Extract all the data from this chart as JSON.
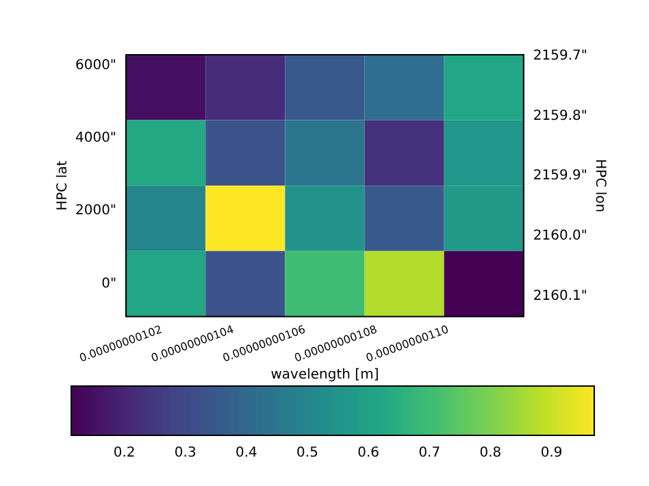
{
  "chart_data": {
    "type": "heatmap",
    "xlabel": "wavelength [m]",
    "ylabel": "HPC lat",
    "y2label": "HPC lon",
    "cells": [
      [
        0.15,
        0.22,
        0.35,
        0.42,
        0.62
      ],
      [
        0.63,
        0.33,
        0.45,
        0.23,
        0.56
      ],
      [
        0.5,
        0.97,
        0.55,
        0.35,
        0.57
      ],
      [
        0.62,
        0.33,
        0.7,
        0.87,
        0.113
      ]
    ],
    "xlim": [
      1.01e-09,
      1.121e-09
    ],
    "xticks": [
      {
        "value": 1.02e-09,
        "label": "0.00000000102"
      },
      {
        "value": 1.04e-09,
        "label": "0.00000000104"
      },
      {
        "value": 1.06e-09,
        "label": "0.00000000106"
      },
      {
        "value": 1.08e-09,
        "label": "0.00000000108"
      },
      {
        "value": 1.1e-09,
        "label": "0.00000000110"
      }
    ],
    "ylim": [
      -906,
      6302
    ],
    "yticks": [
      {
        "value": 0,
        "label": "0\""
      },
      {
        "value": 2000,
        "label": "2000\""
      },
      {
        "value": 4000,
        "label": "4000\""
      },
      {
        "value": 6000,
        "label": "6000\""
      }
    ],
    "y2lim": [
      2160.134,
      2159.698
    ],
    "y2ticks": [
      {
        "value": 2159.7,
        "label": "2159.7\""
      },
      {
        "value": 2159.8,
        "label": "2159.8\""
      },
      {
        "value": 2159.9,
        "label": "2159.9\""
      },
      {
        "value": 2160.0,
        "label": "2160.0\""
      },
      {
        "value": 2160.1,
        "label": "2160.1\""
      }
    ],
    "clim": [
      0.113,
      0.97
    ],
    "cticks": [
      0.2,
      0.3,
      0.4,
      0.5,
      0.6,
      0.7,
      0.8,
      0.9
    ],
    "grid": false
  }
}
